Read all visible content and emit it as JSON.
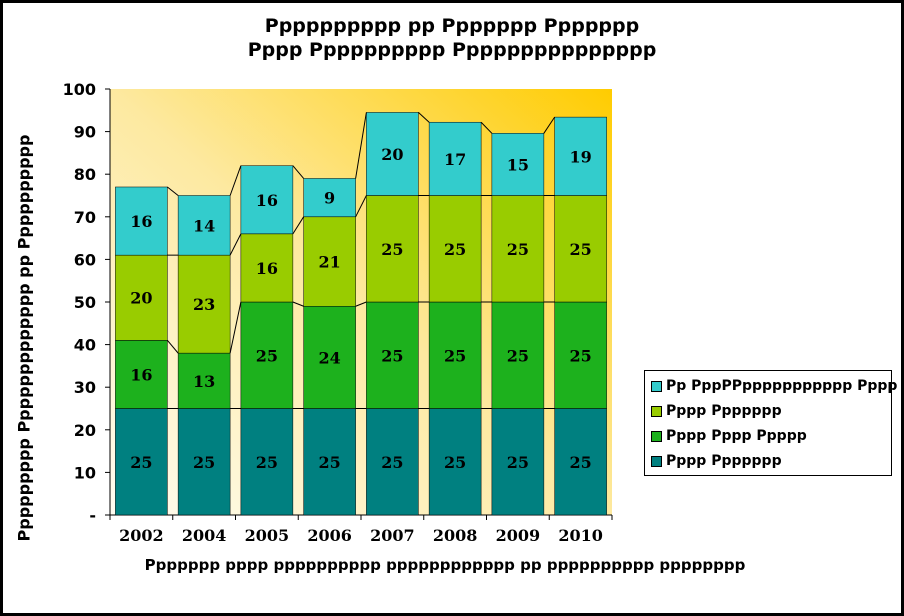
{
  "chart_data": {
    "type": "bar",
    "stacked": true,
    "title_lines": [
      "Pppppppppp pp Ppppppp Ppppppp",
      "Pppp Pppppppppp Ppppppppppppppp"
    ],
    "ylabel": "Ppppppppp Ppppppppppppp pp Pppppppppp",
    "xlabel": "Ppppppp pppp pppppppppp pppppppppppp pp pppppppppp pppppppp",
    "categories": [
      "2002",
      "2004",
      "2005",
      "2006",
      "2007",
      "2008",
      "2009",
      "2010"
    ],
    "ylim": [
      0,
      100
    ],
    "ytick_labels": [
      "-",
      "10",
      "20",
      "30",
      "40",
      "50",
      "60",
      "70",
      "80",
      "90",
      "100"
    ],
    "grid": false,
    "legend_position": "right",
    "series": [
      {
        "name": "Pppp Ppppppp",
        "color": "#008080",
        "values": [
          25,
          25,
          25,
          25,
          25,
          25,
          25,
          25
        ]
      },
      {
        "name": "Pppp Pppp Ppppp",
        "color": "#1DB11D",
        "values": [
          16,
          13,
          25,
          24,
          25,
          25,
          25,
          25
        ]
      },
      {
        "name": "Pppp Ppppppp",
        "color": "#99CC00",
        "values": [
          20,
          23,
          16,
          21,
          25,
          25,
          25,
          25
        ]
      },
      {
        "name": "Pp PppPPppppppppppp Pppp",
        "color": "#33CCCC",
        "values": [
          16,
          14,
          16,
          9,
          20,
          17,
          15,
          19
        ]
      }
    ],
    "stack_totals": [
      77,
      75,
      82,
      79,
      94.5,
      92.2,
      89.6,
      93.4
    ],
    "legend_order": [
      3,
      2,
      1,
      0
    ]
  }
}
